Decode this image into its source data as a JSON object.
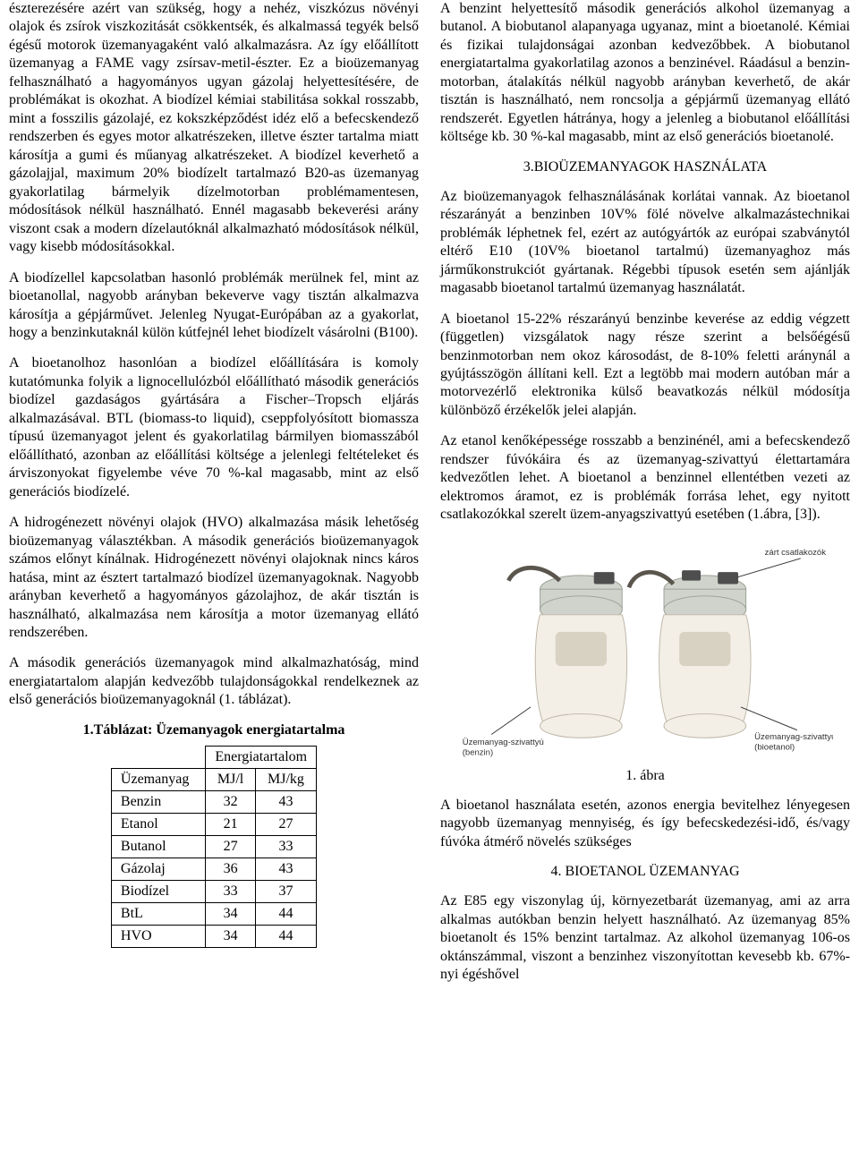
{
  "left": {
    "p1": "észterezésére azért van szükség, hogy a nehéz, viszkózus növényi olajok és zsírok viszkozitását csökkentsék, és alkalmassá tegyék belső égésű motorok üzemanyagaként való alkalmazásra. Az így előállított üzemanyag a FAME vagy zsírsav-metil-észter. Ez a bioüzemanyag felhasználható a hagyományos ugyan gázolaj helyettesítésére, de problémákat is okozhat. A biodízel kémiai stabilitása sokkal rosszabb, mint a fosszilis gázolajé, ez kokszképződést idéz elő a befecskendező rendszerben és egyes motor alkatrészeken, illetve észter tartalma miatt károsítja a gumi és műanyag alkatrészeket. A biodízel keverhető a gázolajjal, maximum 20% biodízelt tartalmazó B20-as üzemanyag gyakorlatilag bármelyik dízelmotorban problémamentesen, módosítások nélkül használható. Ennél magasabb bekeverési arány viszont csak a modern dízelautóknál alkalmazható módosítások nélkül, vagy kisebb módosításokkal.",
    "p2": "A biodízellel kapcsolatban hasonló problémák merülnek fel, mint az bioetanollal, nagyobb arányban bekeverve vagy tisztán alkalmazva károsítja a gépjárművet. Jelenleg Nyugat-Európában az a gyakorlat, hogy a benzinkutaknál külön kútfejnél lehet biodízelt vásárolni (B100).",
    "p3": "A bioetanolhoz hasonlóan a biodízel előállítására is komoly kutatómunka folyik a lignocellulózból előállítható második generációs biodízel gazdaságos gyártására a Fischer–Tropsch eljárás alkalmazásával. BTL (biomass-to liquid), cseppfolyósított biomassza típusú üzemanyagot jelent és gyakorlatilag bármilyen biomasszából előállítható, azonban az előállítási költsége a jelenlegi feltételeket és árviszonyokat figyelembe véve 70 %-kal magasabb, mint az első generációs biodízelé.",
    "p4": "A hidrogénezett növényi olajok (HVO) alkalmazása másik lehetőség bioüzemanyag választékban. A második generációs bioüzemanyagok számos előnyt kínálnak. Hidrogénezett növényi olajoknak nincs káros hatása, mint az észtert tartalmazó biodízel üzemanyagoknak. Nagyobb arányban keverhető a hagyományos gázolajhoz, de akár tisztán is használható, alkalmazása nem károsítja a motor üzemanyag ellátó rendszerében.",
    "p5": "A második generációs üzemanyagok mind alkalmazhatóság, mind energiatartalom alapján kedvezőbb tulajdonságokkal rendelkeznek az első generációs bioüzemanyagoknál (1. táblázat).",
    "tableTitle": "1.Táblázat: Üzemanyagok energiatartalma"
  },
  "table": {
    "headerTop": "Energiatartalom",
    "colFuel": "Üzemanyag",
    "colMJl": "MJ/l",
    "colMJkg": "MJ/kg",
    "rows": [
      {
        "name": "Benzin",
        "mjl": "32",
        "mjkg": "43"
      },
      {
        "name": "Etanol",
        "mjl": "21",
        "mjkg": "27"
      },
      {
        "name": "Butanol",
        "mjl": "27",
        "mjkg": "33"
      },
      {
        "name": "Gázolaj",
        "mjl": "36",
        "mjkg": "43"
      },
      {
        "name": "Biodízel",
        "mjl": "33",
        "mjkg": "37"
      },
      {
        "name": "BtL",
        "mjl": "34",
        "mjkg": "44"
      },
      {
        "name": "HVO",
        "mjl": "34",
        "mjkg": "44"
      }
    ]
  },
  "right": {
    "p1": "A benzint helyettesítő második generációs alkohol üzemanyag a butanol. A biobutanol alapanyaga ugyanaz, mint a bioetanolé. Kémiai és fizikai tulajdonságai azonban kedvezőbbek. A biobutanol energiatartalma gyakorlatilag azonos a benzinével. Ráadásul a benzin-motorban, átalakítás nélkül nagyobb arányban keverhető, de akár tisztán is használható, nem roncsolja a gépjármű üzemanyag ellátó rendszerét. Egyetlen hátránya, hogy a jelenleg a biobutanol előállítási költsége kb. 30 %-kal magasabb, mint az első generációs bioetanolé.",
    "s3title": "3.BIOÜZEMANYAGOK HASZNÁLATA",
    "p2": "Az bioüzemanyagok felhasználásának korlátai vannak. Az bioetanol részarányát a benzinben 10V% fölé növelve alkalmazástechnikai problémák léphetnek fel, ezért az autógyártók az európai szabványtól eltérő E10 (10V% bioetanol tartalmú) üzemanyaghoz más járműkonstrukciót gyártanak. Régebbi típusok esetén sem ajánlják magasabb bioetanol tartalmú üzemanyag használatát.",
    "p3": "A bioetanol 15-22% részarányú benzinbe keverése az eddig végzett (független) vizsgálatok nagy része szerint a belsőégésű benzinmotorban nem okoz károsodást, de 8-10% feletti aránynál a gyújtásszögön állítani kell. Ezt a legtöbb mai modern autóban már a motorvezérlő elektronika külső beavatkozás nélkül módosítja különböző érzékelők jelei alapján.",
    "p4": "Az etanol kenőképessége rosszabb a benzinénél, ami a befecskendező rendszer fúvókáira és az üzemanyag-szivattyú élettartamára kedvezőtlen lehet. A bioetanol a benzinnel ellentétben vezeti az elektromos áramot, ez is problémák forrása lehet, egy nyitott csatlakozókkal szerelt üzem-anyagszivattyú esetében (1.ábra, [3]).",
    "figLabels": {
      "left": "Üzemanyag-szivattyú\n(benzin)",
      "right": "Üzemanyag-szivattyú\n(bioetanol)",
      "closed": "zárt csatlakozók"
    },
    "figCaption": "1. ábra",
    "p5": "A bioetanol használata esetén, azonos energia bevitelhez lényegesen nagyobb üzemanyag mennyiség, és így befecskedezési-idő, és/vagy fúvóka átmérő növelés szükséges",
    "s4title": "4. BIOETANOL ÜZEMANYAG",
    "p6": "Az E85 egy viszonylag új, környezetbarát üzemanyag, ami az arra alkalmas autókban benzin helyett használható. Az üzemanyag 85% bioetanolt és 15% benzint tartalmaz. Az alkohol üzemanyag 106-os oktánszámmal, viszont a benzinhez viszonyítottan kevesebb kb. 67%-nyi égéshővel"
  }
}
